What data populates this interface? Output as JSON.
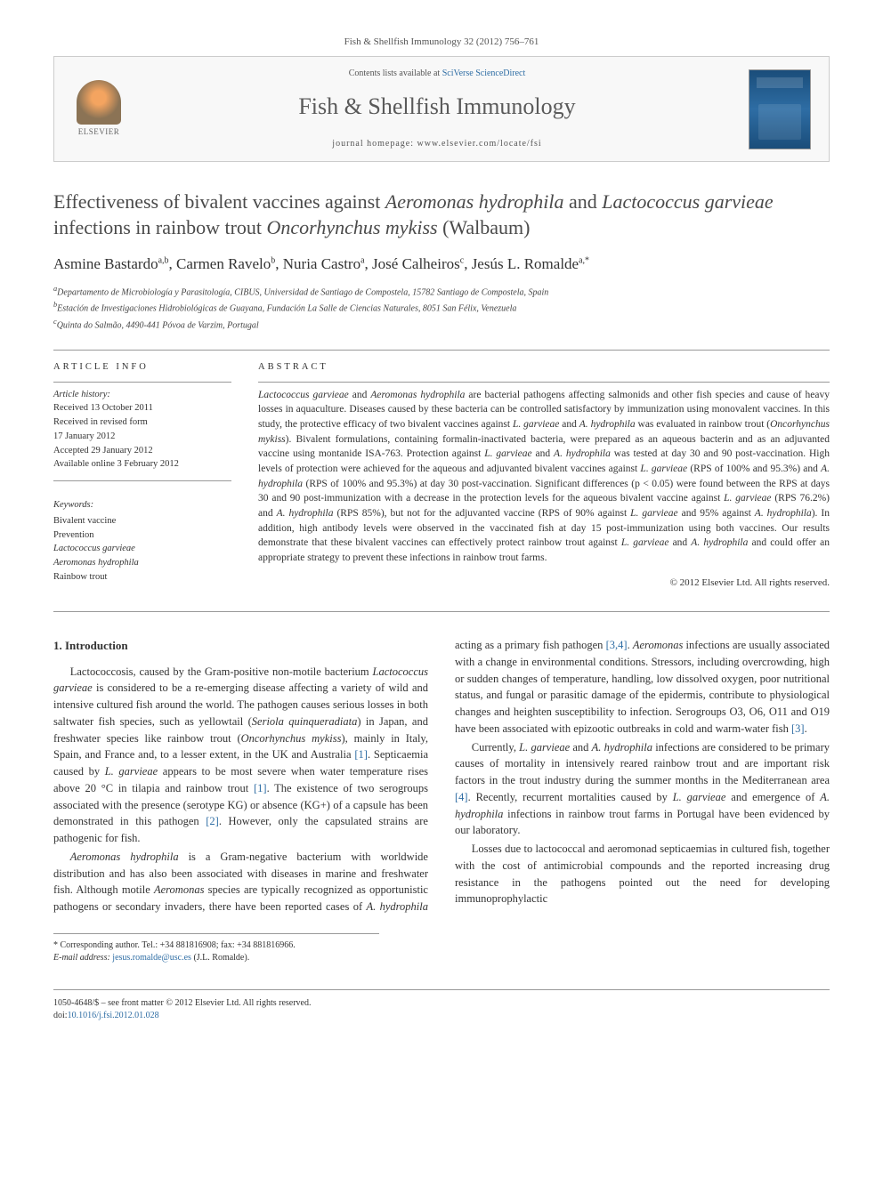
{
  "header": {
    "citation": "Fish & Shellfish Immunology 32 (2012) 756–761",
    "contents_prefix": "Contents lists available at ",
    "contents_link": "SciVerse ScienceDirect",
    "journal_name": "Fish & Shellfish Immunology",
    "homepage_prefix": "journal homepage: ",
    "homepage_url": "www.elsevier.com/locate/fsi",
    "publisher": "ELSEVIER"
  },
  "article": {
    "title_parts": [
      {
        "text": "Effectiveness of bivalent vaccines against ",
        "italic": false
      },
      {
        "text": "Aeromonas hydrophila",
        "italic": true
      },
      {
        "text": " and ",
        "italic": false
      },
      {
        "text": "Lactococcus garvieae",
        "italic": true
      },
      {
        "text": " infections in rainbow trout ",
        "italic": false
      },
      {
        "text": "Oncorhynchus mykiss",
        "italic": true
      },
      {
        "text": " (Walbaum)",
        "italic": false
      }
    ],
    "authors": [
      {
        "name": "Asmine Bastardo",
        "sup": "a,b"
      },
      {
        "name": "Carmen Ravelo",
        "sup": "b"
      },
      {
        "name": "Nuria Castro",
        "sup": "a"
      },
      {
        "name": "José Calheiros",
        "sup": "c"
      },
      {
        "name": "Jesús L. Romalde",
        "sup": "a,*"
      }
    ],
    "affiliations": [
      {
        "sup": "a",
        "text": "Departamento de Microbiología y Parasitología, CIBUS, Universidad de Santiago de Compostela, 15782 Santiago de Compostela, Spain"
      },
      {
        "sup": "b",
        "text": "Estación de Investigaciones Hidrobiológicas de Guayana, Fundación La Salle de Ciencias Naturales, 8051 San Félix, Venezuela"
      },
      {
        "sup": "c",
        "text": "Quinta do Salmão, 4490-441 Póvoa de Varzim, Portugal"
      }
    ]
  },
  "meta": {
    "article_info_label": "ARTICLE INFO",
    "abstract_label": "ABSTRACT",
    "history_label": "Article history:",
    "history": [
      "Received 13 October 2011",
      "Received in revised form",
      "17 January 2012",
      "Accepted 29 January 2012",
      "Available online 3 February 2012"
    ],
    "keywords_label": "Keywords:",
    "keywords": [
      {
        "text": "Bivalent vaccine",
        "italic": false
      },
      {
        "text": "Prevention",
        "italic": false
      },
      {
        "text": "Lactococcus garvieae",
        "italic": true
      },
      {
        "text": "Aeromonas hydrophila",
        "italic": true
      },
      {
        "text": "Rainbow trout",
        "italic": false
      }
    ]
  },
  "abstract": {
    "text": "Lactococcus garvieae and Aeromonas hydrophila are bacterial pathogens affecting salmonids and other fish species and cause of heavy losses in aquaculture. Diseases caused by these bacteria can be controlled satisfactory by immunization using monovalent vaccines. In this study, the protective efficacy of two bivalent vaccines against L. garvieae and A. hydrophila was evaluated in rainbow trout (Oncorhynchus mykiss). Bivalent formulations, containing formalin-inactivated bacteria, were prepared as an aqueous bacterin and as an adjuvanted vaccine using montanide ISA-763. Protection against L. garvieae and A. hydrophila was tested at day 30 and 90 post-vaccination. High levels of protection were achieved for the aqueous and adjuvanted bivalent vaccines against L. garvieae (RPS of 100% and 95.3%) and A. hydrophila (RPS of 100% and 95.3%) at day 30 post-vaccination. Significant differences (p < 0.05) were found between the RPS at days 30 and 90 post-immunization with a decrease in the protection levels for the aqueous bivalent vaccine against L. garvieae (RPS 76.2%) and A. hydrophila (RPS 85%), but not for the adjuvanted vaccine (RPS of 90% against L. garvieae and 95% against A. hydrophila). In addition, high antibody levels were observed in the vaccinated fish at day 15 post-immunization using both vaccines. Our results demonstrate that these bivalent vaccines can effectively protect rainbow trout against L. garvieae and A. hydrophila and could offer an appropriate strategy to prevent these infections in rainbow trout farms.",
    "copyright": "© 2012 Elsevier Ltd. All rights reserved."
  },
  "body": {
    "intro_heading": "1. Introduction",
    "p1": "Lactococcosis, caused by the Gram-positive non-motile bacterium Lactococcus garvieae is considered to be a re-emerging disease affecting a variety of wild and intensive cultured fish around the world. The pathogen causes serious losses in both saltwater fish species, such as yellowtail (Seriola quinqueradiata) in Japan, and freshwater species like rainbow trout (Oncorhynchus mykiss), mainly in Italy, Spain, and France and, to a lesser extent, in the UK and Australia [1]. Septicaemia caused by L. garvieae appears to be most severe when water temperature rises above 20 °C in tilapia and rainbow trout [1]. The existence of two serogroups associated with the presence (serotype KG) or absence (KG+) of a capsule has been demonstrated in this pathogen [2]. However, only the capsulated strains are pathogenic for fish.",
    "p2": "Aeromonas hydrophila is a Gram-negative bacterium with worldwide distribution and has also been associated with diseases in marine and freshwater fish. Although motile Aeromonas species are typically recognized as opportunistic pathogens or secondary invaders, there have been reported cases of A. hydrophila acting as a primary fish pathogen [3,4]. Aeromonas infections are usually associated with a change in environmental conditions. Stressors, including overcrowding, high or sudden changes of temperature, handling, low dissolved oxygen, poor nutritional status, and fungal or parasitic damage of the epidermis, contribute to physiological changes and heighten susceptibility to infection. Serogroups O3, O6, O11 and O19 have been associated with epizootic outbreaks in cold and warm-water fish [3].",
    "p3": "Currently, L. garvieae and A. hydrophila infections are considered to be primary causes of mortality in intensively reared rainbow trout and are important risk factors in the trout industry during the summer months in the Mediterranean area [4]. Recently, recurrent mortalities caused by L. garvieae and emergence of A. hydrophila infections in rainbow trout farms in Portugal have been evidenced by our laboratory.",
    "p4": "Losses due to lactococcal and aeromonad septicaemias in cultured fish, together with the cost of antimicrobial compounds and the reported increasing drug resistance in the pathogens pointed out the need for developing immunoprophylactic"
  },
  "footer": {
    "corr_label": "* Corresponding author. Tel.: +34 881816908; fax: +34 881816966.",
    "email_label": "E-mail address: ",
    "email": "jesus.romalde@usc.es",
    "email_suffix": " (J.L. Romalde).",
    "issn_line": "1050-4648/$ – see front matter © 2012 Elsevier Ltd. All rights reserved.",
    "doi_prefix": "doi:",
    "doi": "10.1016/j.fsi.2012.01.028"
  }
}
